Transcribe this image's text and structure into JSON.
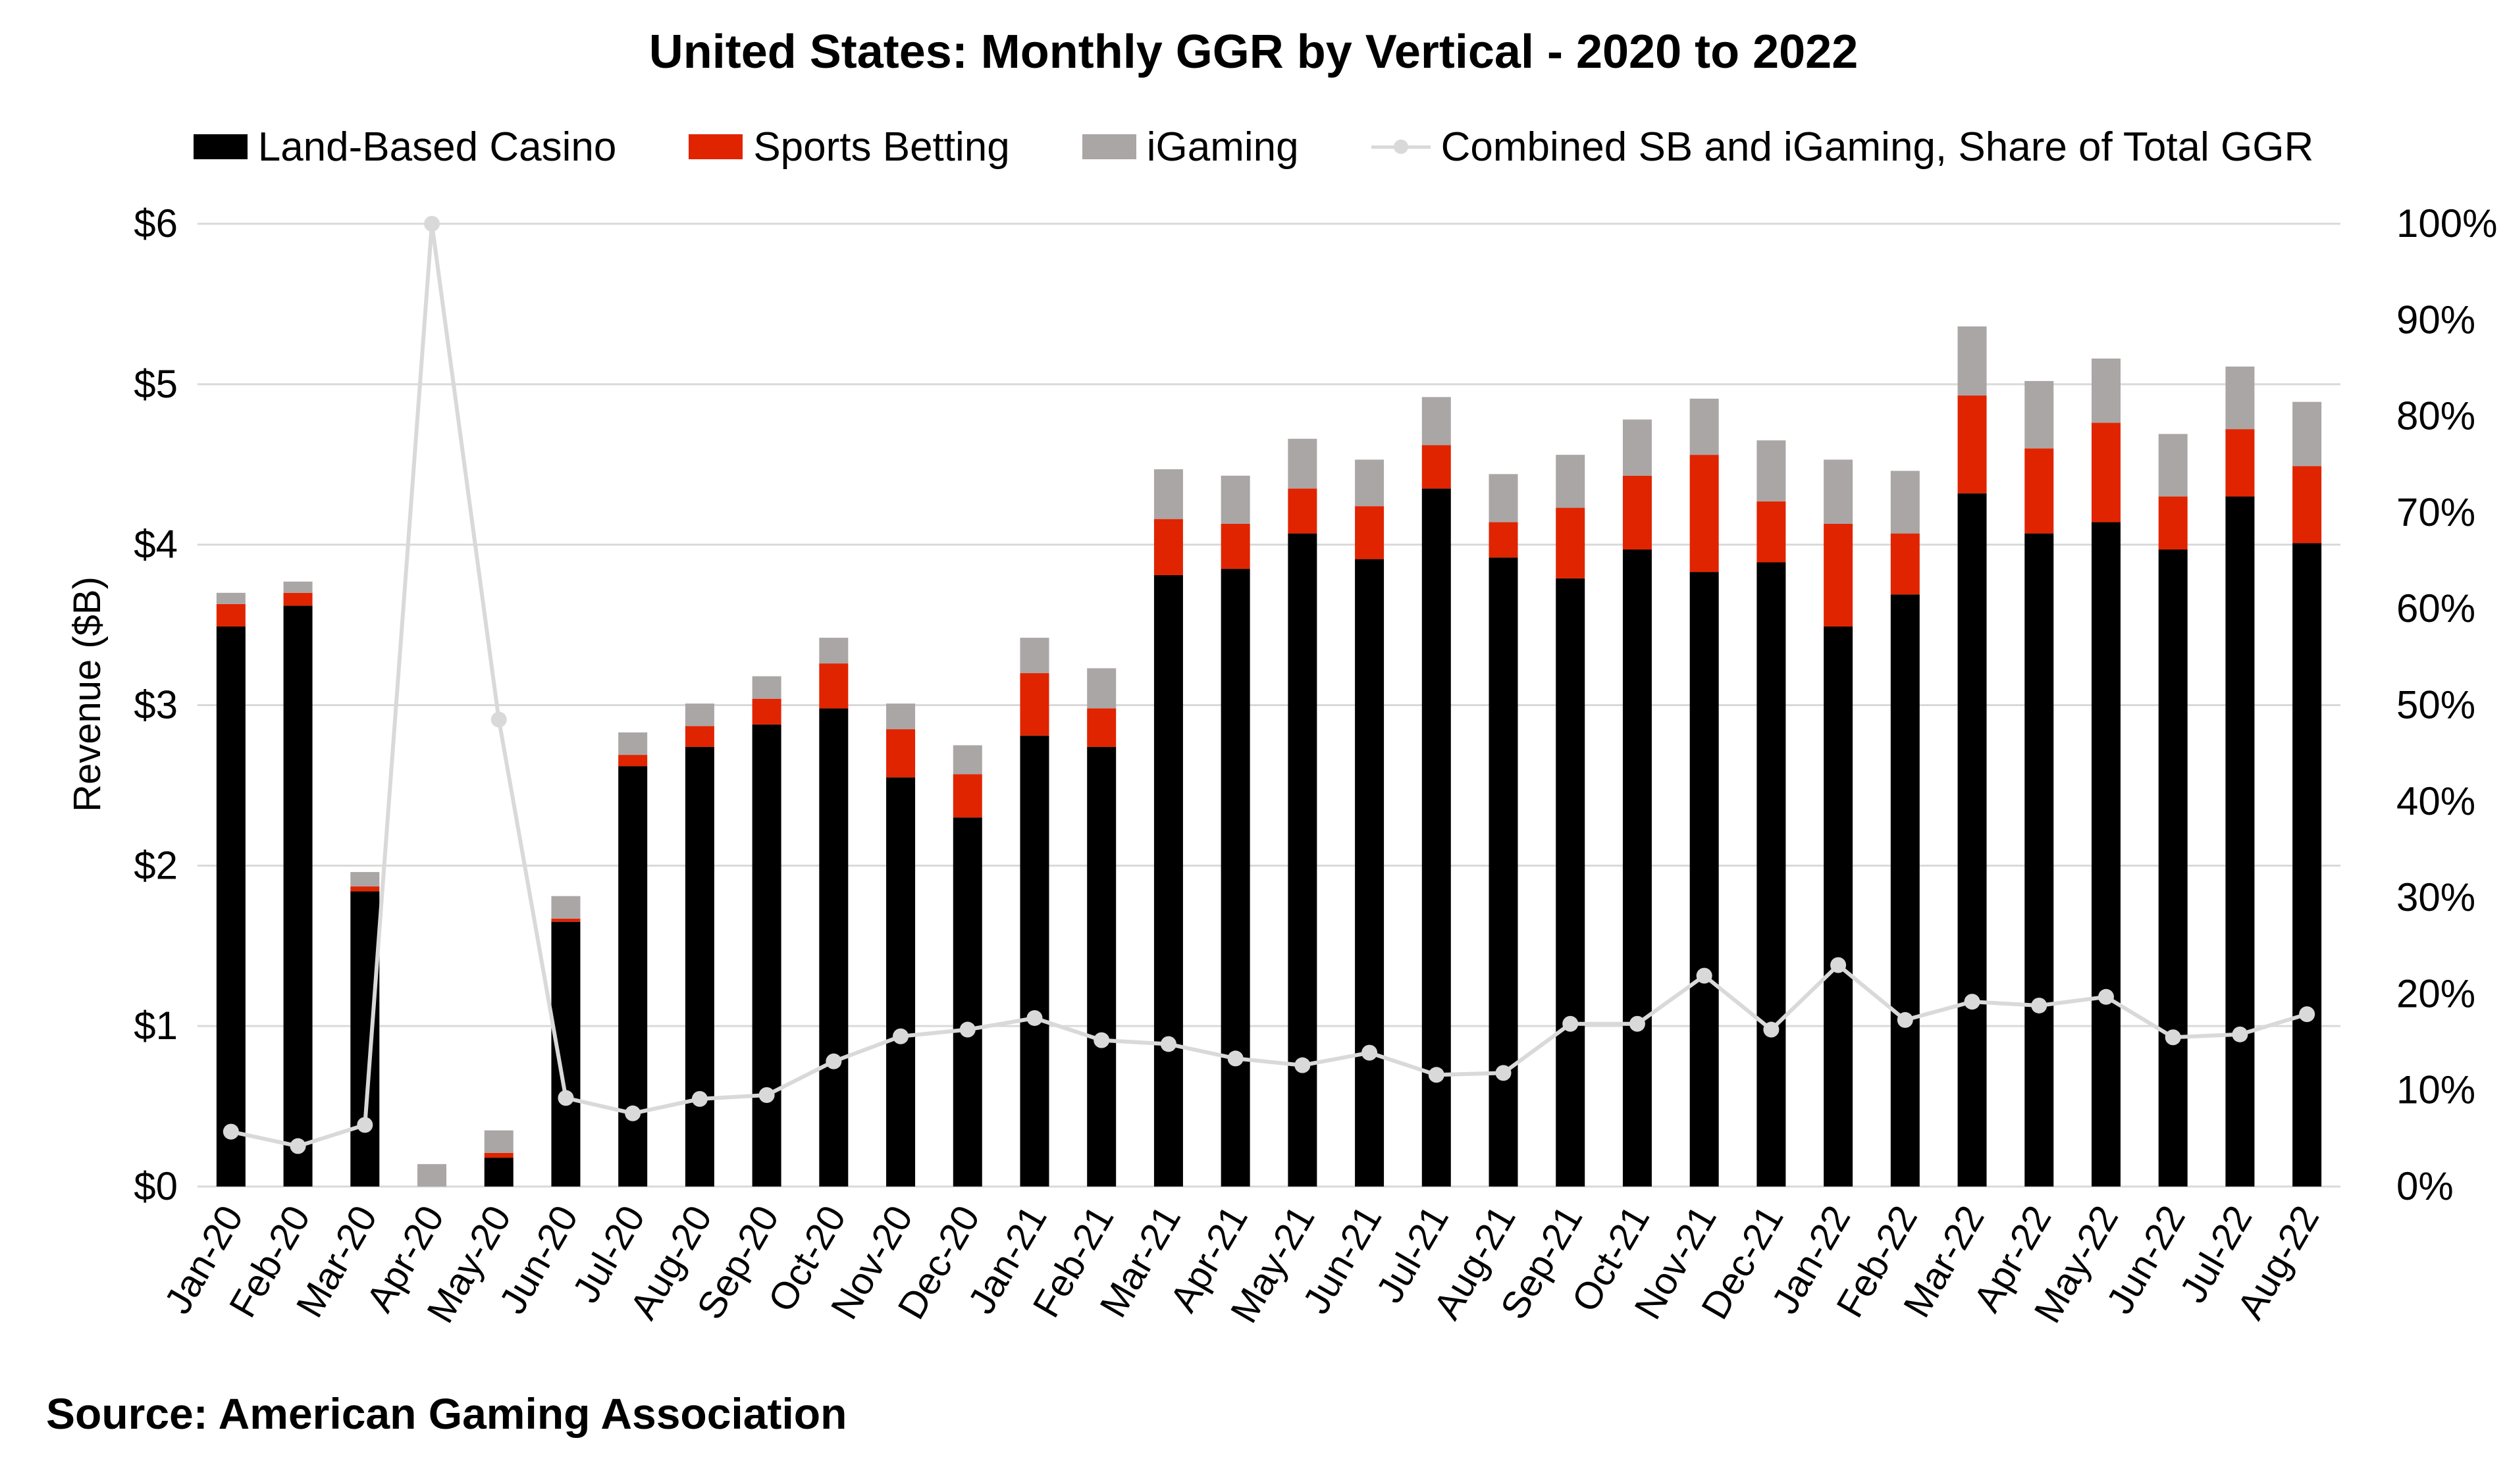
{
  "chart_data": {
    "type": "bar",
    "stacked": true,
    "title": "United States: Monthly GGR by Vertical - 2020 to 2022",
    "ylabel": "Revenue ($B)",
    "ylim": [
      0,
      6
    ],
    "y2lim": [
      0,
      100
    ],
    "y_ticks": [
      "$0",
      "$1",
      "$2",
      "$3",
      "$4",
      "$5",
      "$6"
    ],
    "y2_ticks": [
      "0%",
      "10%",
      "20%",
      "30%",
      "40%",
      "50%",
      "60%",
      "70%",
      "80%",
      "90%",
      "100%"
    ],
    "grid": true,
    "legend_position": "top",
    "categories": [
      "Jan-20",
      "Feb-20",
      "Mar-20",
      "Apr-20",
      "May-20",
      "Jun-20",
      "Jul-20",
      "Aug-20",
      "Sep-20",
      "Oct-20",
      "Nov-20",
      "Dec-20",
      "Jan-21",
      "Feb-21",
      "Mar-21",
      "Apr-21",
      "May-21",
      "Jun-21",
      "Jul-21",
      "Aug-21",
      "Sep-21",
      "Oct-21",
      "Nov-21",
      "Dec-21",
      "Jan-22",
      "Feb-22",
      "Mar-22",
      "Apr-22",
      "May-22",
      "Jun-22",
      "Jul-22",
      "Aug-22"
    ],
    "series": [
      {
        "name": "Land-Based Casino",
        "color": "#000000",
        "values": [
          3.49,
          3.62,
          1.84,
          0.0,
          0.18,
          1.65,
          2.62,
          2.74,
          2.88,
          2.98,
          2.55,
          2.3,
          2.81,
          2.74,
          3.81,
          3.85,
          4.07,
          3.91,
          4.35,
          3.92,
          3.79,
          3.97,
          3.83,
          3.89,
          3.49,
          3.69,
          4.32,
          4.07,
          4.14,
          3.97,
          4.3,
          4.01
        ]
      },
      {
        "name": "Sports Betting",
        "color": "#e02400",
        "values": [
          0.14,
          0.08,
          0.03,
          0.0,
          0.03,
          0.02,
          0.07,
          0.13,
          0.16,
          0.28,
          0.3,
          0.27,
          0.39,
          0.24,
          0.35,
          0.28,
          0.28,
          0.33,
          0.27,
          0.22,
          0.44,
          0.46,
          0.73,
          0.38,
          0.64,
          0.38,
          0.61,
          0.53,
          0.62,
          0.33,
          0.42,
          0.48
        ]
      },
      {
        "name": "iGaming",
        "color": "#aaa6a5",
        "values": [
          0.07,
          0.07,
          0.09,
          0.14,
          0.14,
          0.14,
          0.14,
          0.14,
          0.14,
          0.16,
          0.16,
          0.18,
          0.22,
          0.25,
          0.31,
          0.3,
          0.31,
          0.29,
          0.3,
          0.3,
          0.33,
          0.35,
          0.35,
          0.38,
          0.4,
          0.39,
          0.43,
          0.42,
          0.4,
          0.39,
          0.39,
          0.4
        ]
      },
      {
        "name": "Combined SB and iGaming, Share of Total GGR",
        "type": "line",
        "axis": "right",
        "color": "#d9d9d9",
        "values": [
          5.7,
          4.2,
          6.4,
          100.0,
          48.5,
          9.2,
          7.6,
          9.1,
          9.5,
          13.0,
          15.6,
          16.3,
          17.5,
          15.2,
          14.8,
          13.3,
          12.6,
          13.9,
          11.6,
          11.8,
          16.9,
          16.9,
          21.9,
          16.3,
          23.0,
          17.3,
          19.2,
          18.8,
          19.7,
          15.5,
          15.8,
          17.9
        ]
      }
    ]
  },
  "source_note": "Source: American Gaming Association"
}
